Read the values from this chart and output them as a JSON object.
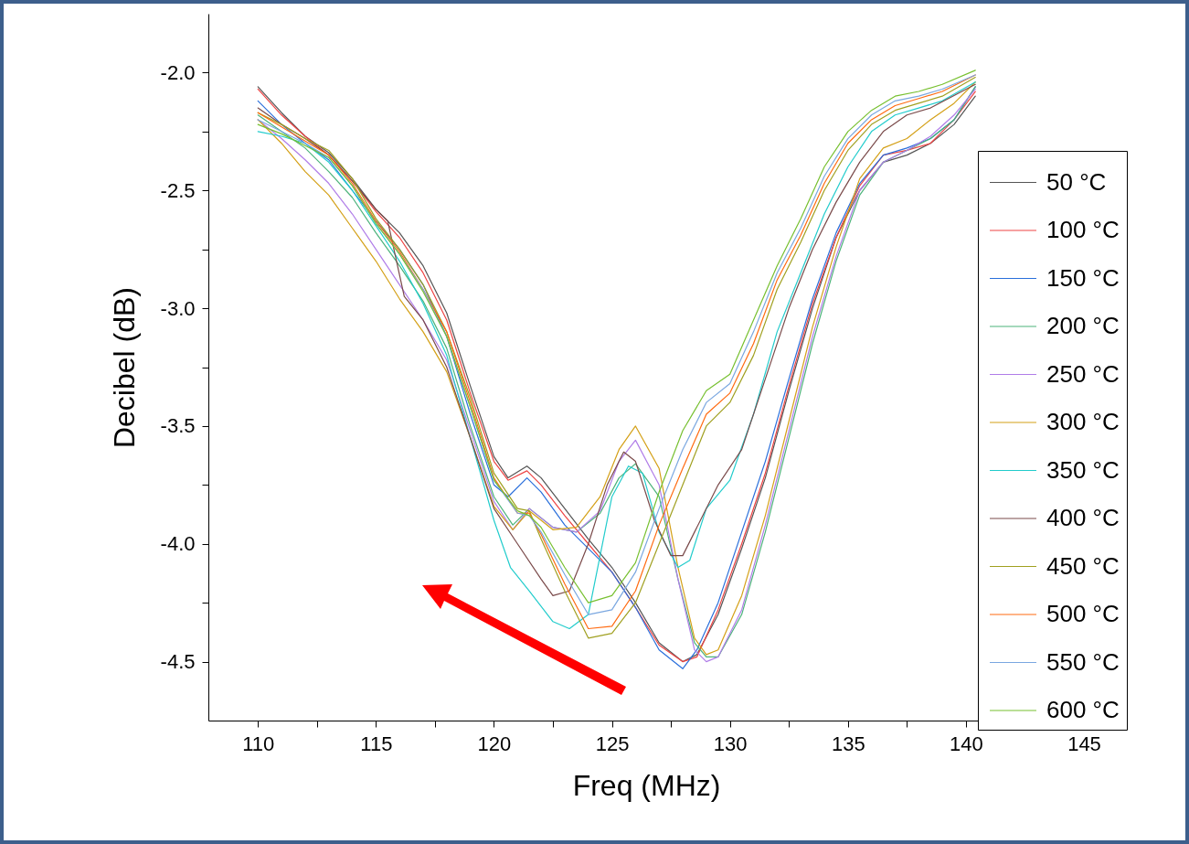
{
  "chart_data": {
    "type": "line",
    "xlabel": "Freq (MHz)",
    "ylabel": "Decibel (dB)",
    "xlim": [
      107.9,
      145
    ],
    "ylim": [
      -4.75,
      -1.75
    ],
    "xticks": [
      110,
      {
        "value": 112.5,
        "label": null
      },
      115,
      {
        "value": 117.5,
        "label": null
      },
      120,
      {
        "value": 122.5,
        "label": null
      },
      125,
      {
        "value": 127.5,
        "label": null
      },
      130,
      {
        "value": 132.5,
        "label": null
      },
      135,
      {
        "value": 137.5,
        "label": null
      },
      140,
      {
        "value": 142.5,
        "label": null
      },
      145
    ],
    "yticks": [
      {
        "value": -2,
        "label": "-2.0"
      },
      {
        "value": -2.25,
        "label": null
      },
      {
        "value": -2.5,
        "label": "-2.5"
      },
      {
        "value": -2.75,
        "label": null
      },
      {
        "value": -3,
        "label": "-3.0"
      },
      {
        "value": -3.25,
        "label": null
      },
      {
        "value": -3.5,
        "label": "-3.5"
      },
      {
        "value": -3.75,
        "label": null
      },
      {
        "value": -4,
        "label": "-4.0"
      },
      {
        "value": -4.25,
        "label": null
      },
      {
        "value": -4.5,
        "label": "-4.5"
      }
    ],
    "grid": false,
    "legend": "right",
    "line_style": "solid",
    "series": [
      {
        "name": "50 °C",
        "color": "#555555",
        "x": [
          110,
          111,
          112,
          113,
          114,
          115,
          116,
          117,
          118,
          119,
          120,
          120.6,
          121.4,
          122,
          123,
          124,
          125,
          126,
          127,
          128,
          128.6,
          129.5,
          130.5,
          131.5,
          132.5,
          133.5,
          134.5,
          135.5,
          136.5,
          137.5,
          138.5,
          139.5,
          140.4
        ],
        "values": [
          -2.06,
          -2.17,
          -2.27,
          -2.34,
          -2.45,
          -2.58,
          -2.68,
          -2.82,
          -3.02,
          -3.33,
          -3.63,
          -3.72,
          -3.67,
          -3.72,
          -3.85,
          -3.98,
          -4.1,
          -4.25,
          -4.42,
          -4.5,
          -4.47,
          -4.3,
          -4.02,
          -3.72,
          -3.35,
          -3.0,
          -2.7,
          -2.5,
          -2.38,
          -2.35,
          -2.3,
          -2.22,
          -2.1
        ]
      },
      {
        "name": "100 °C",
        "color": "#ee4444",
        "x": [
          110,
          111,
          112,
          113,
          114,
          115,
          116,
          117,
          118,
          119,
          120,
          120.6,
          121.4,
          122,
          123,
          124,
          125,
          126,
          127,
          128,
          128.6,
          129.5,
          130.5,
          131.5,
          132.5,
          133.5,
          134.5,
          135.5,
          136.5,
          137.5,
          138.5,
          139.5,
          140.4
        ],
        "values": [
          -2.07,
          -2.18,
          -2.27,
          -2.35,
          -2.46,
          -2.59,
          -2.7,
          -2.85,
          -3.05,
          -3.36,
          -3.65,
          -3.73,
          -3.69,
          -3.75,
          -3.88,
          -4.0,
          -4.12,
          -4.27,
          -4.43,
          -4.5,
          -4.48,
          -4.28,
          -4.0,
          -3.7,
          -3.33,
          -2.98,
          -2.7,
          -2.48,
          -2.35,
          -2.33,
          -2.3,
          -2.2,
          -2.08
        ]
      },
      {
        "name": "150 °C",
        "color": "#2a6fdb",
        "x": [
          110,
          111,
          112,
          113,
          114,
          115,
          116,
          117,
          118,
          119,
          120,
          120.6,
          121.4,
          122,
          123,
          124,
          125,
          126,
          127,
          128,
          128.6,
          129.5,
          130.5,
          131.5,
          132.5,
          133.5,
          134.5,
          135.5,
          136.5,
          137.5,
          138.5,
          139.5,
          140.4
        ],
        "values": [
          -2.12,
          -2.22,
          -2.3,
          -2.37,
          -2.5,
          -2.63,
          -2.75,
          -2.9,
          -3.12,
          -3.45,
          -3.75,
          -3.8,
          -3.72,
          -3.78,
          -3.92,
          -4.02,
          -4.12,
          -4.27,
          -4.45,
          -4.53,
          -4.45,
          -4.25,
          -3.95,
          -3.65,
          -3.3,
          -2.96,
          -2.68,
          -2.47,
          -2.35,
          -2.32,
          -2.28,
          -2.2,
          -2.06
        ]
      },
      {
        "name": "200 °C",
        "color": "#4cb37a",
        "x": [
          110,
          111,
          112,
          113,
          114,
          115,
          116,
          117,
          118,
          119,
          120,
          120.8,
          121.5,
          122.5,
          123.5,
          124.5,
          125.3,
          126,
          127,
          127.8,
          128.5,
          129,
          129.5,
          130.5,
          131.5,
          132.5,
          133.5,
          134.5,
          135.5,
          136.5,
          137.5,
          138.5,
          139.5,
          140.4
        ],
        "values": [
          -2.18,
          -2.25,
          -2.32,
          -2.42,
          -2.53,
          -2.68,
          -2.82,
          -2.97,
          -3.17,
          -3.5,
          -3.8,
          -3.92,
          -3.85,
          -3.93,
          -3.95,
          -3.87,
          -3.72,
          -3.66,
          -3.8,
          -4.15,
          -4.42,
          -4.48,
          -4.48,
          -4.3,
          -3.95,
          -3.55,
          -3.15,
          -2.8,
          -2.52,
          -2.38,
          -2.33,
          -2.28,
          -2.2,
          -2.06
        ]
      },
      {
        "name": "250 °C",
        "color": "#b07de8",
        "x": [
          110,
          111,
          112,
          113,
          114,
          115,
          116,
          117,
          118,
          119,
          120,
          120.8,
          121.5,
          122.5,
          123.5,
          124.5,
          125.3,
          126,
          127,
          127.8,
          128.5,
          129,
          129.5,
          130.5,
          131.5,
          132.5,
          133.5,
          134.5,
          135.5,
          136.5,
          137.5,
          138.5,
          139.5,
          140.4
        ],
        "values": [
          -2.2,
          -2.28,
          -2.37,
          -2.47,
          -2.6,
          -2.75,
          -2.9,
          -3.05,
          -3.22,
          -3.52,
          -3.82,
          -3.94,
          -3.85,
          -3.93,
          -3.95,
          -3.86,
          -3.65,
          -3.56,
          -3.75,
          -4.15,
          -4.45,
          -4.5,
          -4.48,
          -4.28,
          -3.92,
          -3.52,
          -3.12,
          -2.78,
          -2.5,
          -2.38,
          -2.33,
          -2.27,
          -2.18,
          -2.07
        ]
      },
      {
        "name": "300 °C",
        "color": "#d4a017",
        "x": [
          110,
          111,
          112,
          113,
          114,
          115,
          116,
          117,
          118,
          119,
          120,
          120.8,
          121.5,
          122.5,
          123.5,
          124.5,
          125.3,
          126,
          127,
          127.8,
          128.5,
          129,
          129.5,
          130.5,
          131.5,
          132.5,
          133.5,
          134.5,
          135.5,
          136.5,
          137.5,
          138.5,
          139.5,
          140.4
        ],
        "values": [
          -2.2,
          -2.3,
          -2.42,
          -2.52,
          -2.66,
          -2.8,
          -2.96,
          -3.1,
          -3.27,
          -3.55,
          -3.84,
          -3.94,
          -3.86,
          -3.94,
          -3.93,
          -3.8,
          -3.6,
          -3.5,
          -3.68,
          -4.1,
          -4.4,
          -4.47,
          -4.45,
          -4.22,
          -3.88,
          -3.48,
          -3.08,
          -2.74,
          -2.45,
          -2.32,
          -2.28,
          -2.2,
          -2.13,
          -2.04
        ]
      },
      {
        "name": "350 °C",
        "color": "#22cccc",
        "x": [
          110,
          111,
          112,
          113,
          114,
          115,
          116,
          117,
          118,
          119,
          120,
          120.7,
          121.5,
          122.5,
          123.2,
          124,
          124.5,
          125,
          125.7,
          126.3,
          127,
          127.8,
          128.3,
          129,
          130,
          131,
          132,
          133,
          134,
          135,
          136,
          137,
          138,
          139,
          140.4
        ],
        "values": [
          -2.25,
          -2.27,
          -2.3,
          -2.38,
          -2.5,
          -2.65,
          -2.8,
          -2.98,
          -3.2,
          -3.55,
          -3.9,
          -4.1,
          -4.2,
          -4.33,
          -4.36,
          -4.3,
          -4.05,
          -3.8,
          -3.67,
          -3.7,
          -3.95,
          -4.1,
          -4.07,
          -3.85,
          -3.73,
          -3.45,
          -3.1,
          -2.85,
          -2.6,
          -2.4,
          -2.25,
          -2.18,
          -2.15,
          -2.12,
          -2.04
        ]
      },
      {
        "name": "400 °C",
        "color": "#7a4a4a",
        "x": [
          110,
          111,
          112,
          113,
          114,
          115,
          115.5,
          116.2,
          117,
          118,
          119,
          120,
          121,
          122,
          122.5,
          123.2,
          124,
          124.8,
          125.5,
          126,
          126.8,
          127.5,
          128,
          128.5,
          129.5,
          130.5,
          131.5,
          132.5,
          133.5,
          134.5,
          135.5,
          136.5,
          137.5,
          138.5,
          140.4
        ],
        "values": [
          -2.15,
          -2.22,
          -2.28,
          -2.35,
          -2.46,
          -2.58,
          -2.63,
          -2.95,
          -3.05,
          -3.25,
          -3.55,
          -3.85,
          -4.0,
          -4.15,
          -4.22,
          -4.2,
          -4.0,
          -3.75,
          -3.61,
          -3.65,
          -3.9,
          -4.05,
          -4.05,
          -3.95,
          -3.75,
          -3.6,
          -3.3,
          -3.0,
          -2.75,
          -2.55,
          -2.38,
          -2.25,
          -2.18,
          -2.15,
          -2.05
        ]
      },
      {
        "name": "450 °C",
        "color": "#a0a020",
        "x": [
          110,
          111,
          112,
          113,
          114,
          115,
          116,
          117,
          118,
          119,
          120,
          121,
          121.5,
          122,
          123,
          124,
          125,
          126,
          127,
          128,
          129,
          130,
          131,
          132,
          133,
          134,
          135,
          136,
          137,
          138,
          139,
          140.4
        ],
        "values": [
          -2.17,
          -2.22,
          -2.28,
          -2.33,
          -2.45,
          -2.62,
          -2.75,
          -2.9,
          -3.1,
          -3.38,
          -3.7,
          -3.85,
          -3.86,
          -3.98,
          -4.2,
          -4.4,
          -4.38,
          -4.25,
          -4.0,
          -3.75,
          -3.5,
          -3.4,
          -3.2,
          -2.92,
          -2.72,
          -2.5,
          -2.33,
          -2.22,
          -2.16,
          -2.13,
          -2.1,
          -2.02
        ]
      },
      {
        "name": "500 °C",
        "color": "#ff6a10",
        "x": [
          110,
          111,
          112,
          113,
          114,
          115,
          116,
          117,
          118,
          119,
          120,
          121,
          121.5,
          122,
          123,
          124,
          125,
          126,
          127,
          128,
          129,
          130,
          131,
          132,
          133,
          134,
          135,
          136,
          137,
          138,
          139,
          140.4
        ],
        "values": [
          -2.17,
          -2.23,
          -2.29,
          -2.35,
          -2.47,
          -2.63,
          -2.76,
          -2.92,
          -3.1,
          -3.4,
          -3.72,
          -3.87,
          -3.87,
          -3.96,
          -4.17,
          -4.36,
          -4.35,
          -4.2,
          -3.92,
          -3.68,
          -3.45,
          -3.36,
          -3.15,
          -2.88,
          -2.69,
          -2.47,
          -2.3,
          -2.2,
          -2.14,
          -2.11,
          -2.08,
          -2.01
        ]
      },
      {
        "name": "550 °C",
        "color": "#7aa7e0",
        "x": [
          110,
          111,
          112,
          113,
          114,
          115,
          116,
          117,
          118,
          119,
          120,
          121,
          121.5,
          122,
          123,
          124,
          125,
          126,
          127,
          128,
          129,
          130,
          131,
          132,
          133,
          134,
          135,
          136,
          137,
          138,
          139,
          140.4
        ],
        "values": [
          -2.2,
          -2.25,
          -2.3,
          -2.36,
          -2.48,
          -2.64,
          -2.77,
          -2.92,
          -3.12,
          -3.42,
          -3.73,
          -3.87,
          -3.88,
          -3.95,
          -4.13,
          -4.3,
          -4.28,
          -4.12,
          -3.85,
          -3.6,
          -3.4,
          -3.32,
          -3.1,
          -2.85,
          -2.66,
          -2.44,
          -2.28,
          -2.18,
          -2.12,
          -2.1,
          -2.07,
          -2.01
        ]
      },
      {
        "name": "600 °C",
        "color": "#77c030",
        "x": [
          110,
          111,
          112,
          113,
          114,
          115,
          116,
          117,
          118,
          119,
          120,
          121,
          121.5,
          122,
          123,
          124,
          125,
          126,
          127,
          128,
          129,
          130,
          131,
          132,
          133,
          134,
          135,
          136,
          137,
          138,
          139,
          140.4
        ],
        "values": [
          -2.22,
          -2.26,
          -2.31,
          -2.36,
          -2.48,
          -2.64,
          -2.77,
          -2.93,
          -3.12,
          -3.42,
          -3.73,
          -3.86,
          -3.88,
          -3.93,
          -4.1,
          -4.25,
          -4.22,
          -4.08,
          -3.78,
          -3.52,
          -3.35,
          -3.28,
          -3.05,
          -2.82,
          -2.62,
          -2.4,
          -2.25,
          -2.16,
          -2.1,
          -2.08,
          -2.05,
          -1.99
        ]
      }
    ]
  }
}
